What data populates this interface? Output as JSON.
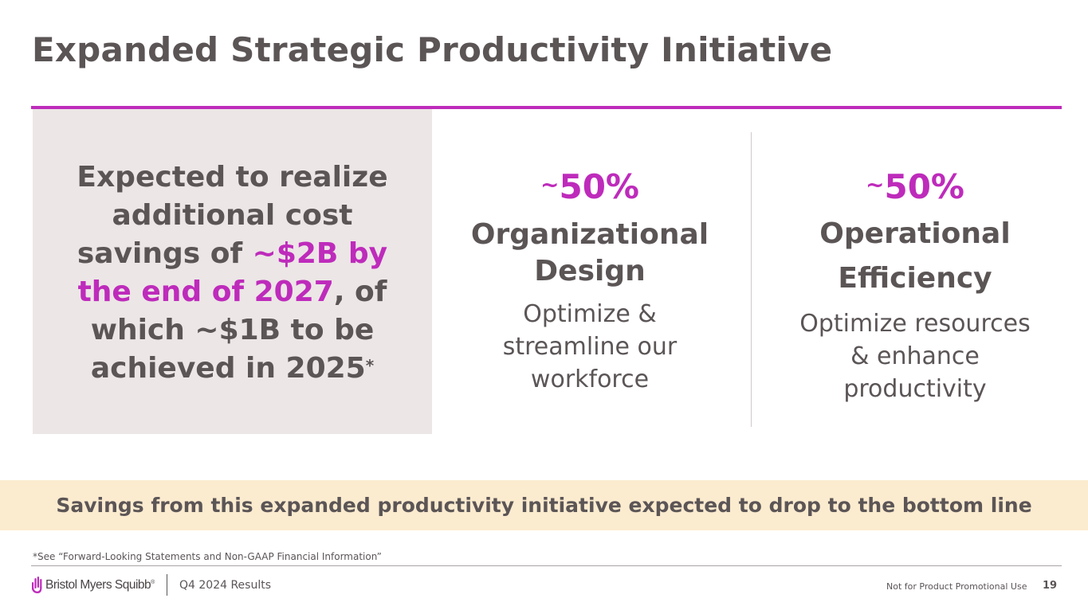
{
  "title": "Expanded Strategic Productivity Initiative",
  "colors": {
    "accent": "#be2bbb",
    "text": "#5b5556",
    "left_box": "#ece6e6",
    "banner": "#fbebcf"
  },
  "left_box": {
    "part1": "Expected to realize additional cost savings of ",
    "highlight": "~$2B by the end of 2027",
    "part2": ", of which ~$1B to be achieved in 2025",
    "marker": "*"
  },
  "columns": [
    {
      "tilde": "~",
      "percent": "50%",
      "heading": "Organizational Design",
      "description": "Optimize & streamline our workforce"
    },
    {
      "tilde": "~",
      "percent": "50%",
      "heading": "Operational Efficiency",
      "description": "Optimize resources & enhance productivity"
    }
  ],
  "banner": "Savings from this expanded productivity initiative expected to drop to the bottom line",
  "footnote": "*See “Forward-Looking Statements and Non-GAAP Financial Information”",
  "footer": {
    "logo_text": "Bristol Myers Squibb",
    "logo_mark": "®",
    "logo_icon": "bms-hand-icon",
    "report": "Q4 2024 Results",
    "disclaimer": "Not for Product Promotional Use",
    "page": "19"
  }
}
